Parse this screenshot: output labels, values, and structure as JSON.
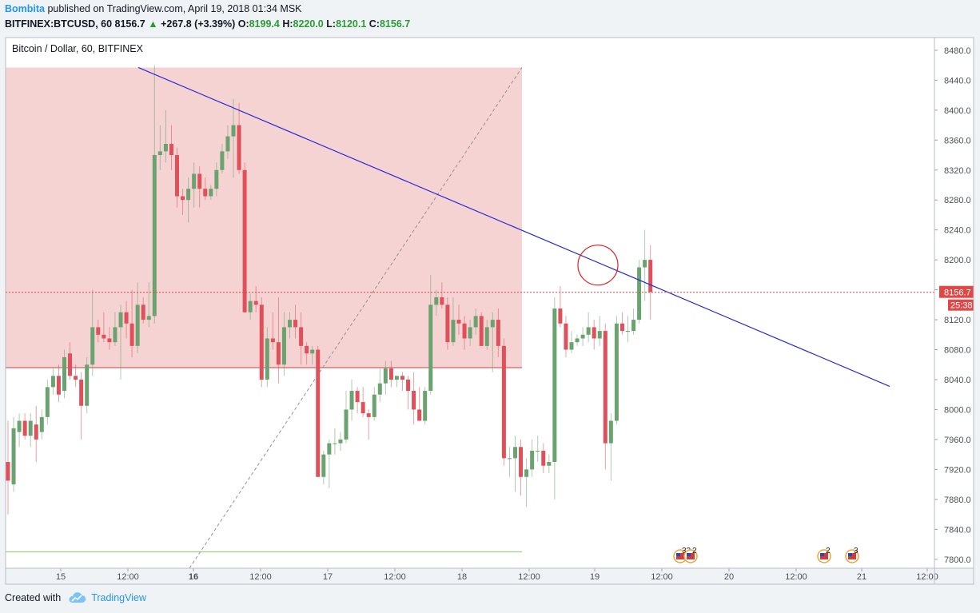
{
  "header": {
    "author": "Bombita",
    "published": " published on TradingView.com, April 19, 2018 01:34 MSK",
    "symbol": "BITFINEX:BTCUSD, 60",
    "last": "8156.7",
    "change": "+267.8 (+3.39%)",
    "o_label": "O:",
    "o": "8199.4",
    "h_label": "H:",
    "h": "8220.0",
    "l_label": "L:",
    "l": "8120.1",
    "c_label": "C:",
    "c": "8156.7"
  },
  "legend_title": "Bitcoin / Dollar, 60, BITFINEX",
  "footer": {
    "created_with": "Created with",
    "brand": "TradingView"
  },
  "price_label": "8156.7",
  "countdown_label": "25:38",
  "events": [
    {
      "label": "33",
      "near": "Apr 19 12:00"
    },
    {
      "label": "2",
      "near": "Apr 19 12:00"
    },
    {
      "label": "2",
      "near": "Apr 20 12:00"
    },
    {
      "label": "3",
      "near": "Apr 21"
    }
  ],
  "colors": {
    "up": "#6aa36f",
    "down": "#e0505a",
    "trendline": "#2a2ad8",
    "zone_red": "#f5d3d3",
    "zone_green": "#e9f6d4",
    "price_line": "#e04040"
  },
  "chart_data": {
    "type": "candlestick",
    "title": "Bitcoin / Dollar, 60, BITFINEX",
    "x_ticks": [
      "15",
      "12:00",
      "16",
      "12:00",
      "17",
      "12:00",
      "18",
      "12:00",
      "19",
      "12:00",
      "20",
      "12:00",
      "21",
      "12:00"
    ],
    "y_ticks": [
      8480,
      8440,
      8400,
      8360,
      8320,
      8280,
      8240,
      8200,
      8160,
      8120,
      8080,
      8040,
      8000,
      7960,
      7920,
      7880,
      7840,
      7800
    ],
    "ylim": [
      7788,
      8497
    ],
    "current_price": 8156.7,
    "zones": [
      {
        "type": "stop",
        "from": 8056,
        "to": 8457
      },
      {
        "type": "target",
        "from": 7787,
        "to": 8056
      }
    ],
    "target_line": 7810,
    "trendline": {
      "from_bar": 0,
      "from_price": 8457,
      "to_bar": 1,
      "to_price": 8031
    },
    "candles": [
      {
        "o": 7930,
        "h": 7985,
        "l": 7860,
        "c": 7905
      },
      {
        "o": 7900,
        "h": 7990,
        "l": 7890,
        "c": 7975
      },
      {
        "o": 7970,
        "h": 7995,
        "l": 7950,
        "c": 7985
      },
      {
        "o": 7985,
        "h": 7995,
        "l": 7960,
        "c": 7965
      },
      {
        "o": 7965,
        "h": 7995,
        "l": 7950,
        "c": 7985
      },
      {
        "o": 7980,
        "h": 8005,
        "l": 7930,
        "c": 7960
      },
      {
        "o": 7970,
        "h": 8000,
        "l": 7960,
        "c": 7990
      },
      {
        "o": 7990,
        "h": 8040,
        "l": 7980,
        "c": 8030
      },
      {
        "o": 8030,
        "h": 8055,
        "l": 8020,
        "c": 8045
      },
      {
        "o": 8045,
        "h": 8060,
        "l": 8010,
        "c": 8020
      },
      {
        "o": 8025,
        "h": 8080,
        "l": 8015,
        "c": 8070
      },
      {
        "o": 8075,
        "h": 8090,
        "l": 8040,
        "c": 8045
      },
      {
        "o": 8045,
        "h": 8060,
        "l": 8030,
        "c": 8040
      },
      {
        "o": 8040,
        "h": 8050,
        "l": 7960,
        "c": 8005
      },
      {
        "o": 8005,
        "h": 8070,
        "l": 7995,
        "c": 8060
      },
      {
        "o": 8060,
        "h": 8160,
        "l": 8045,
        "c": 8110
      },
      {
        "o": 8110,
        "h": 8120,
        "l": 8090,
        "c": 8100
      },
      {
        "o": 8100,
        "h": 8130,
        "l": 8090,
        "c": 8095
      },
      {
        "o": 8095,
        "h": 8110,
        "l": 8080,
        "c": 8090
      },
      {
        "o": 8090,
        "h": 8130,
        "l": 8085,
        "c": 8110
      },
      {
        "o": 8110,
        "h": 8140,
        "l": 8040,
        "c": 8130
      },
      {
        "o": 8130,
        "h": 8145,
        "l": 8095,
        "c": 8115
      },
      {
        "o": 8115,
        "h": 8160,
        "l": 8070,
        "c": 8085
      },
      {
        "o": 8085,
        "h": 8170,
        "l": 8075,
        "c": 8140
      },
      {
        "o": 8140,
        "h": 8150,
        "l": 8115,
        "c": 8120
      },
      {
        "o": 8120,
        "h": 8170,
        "l": 8110,
        "c": 8125
      },
      {
        "o": 8125,
        "h": 8460,
        "l": 8115,
        "c": 8340
      },
      {
        "o": 8340,
        "h": 8380,
        "l": 8320,
        "c": 8345
      },
      {
        "o": 8345,
        "h": 8400,
        "l": 8330,
        "c": 8355
      },
      {
        "o": 8355,
        "h": 8380,
        "l": 8320,
        "c": 8340
      },
      {
        "o": 8340,
        "h": 8350,
        "l": 8270,
        "c": 8285
      },
      {
        "o": 8285,
        "h": 8295,
        "l": 8260,
        "c": 8280
      },
      {
        "o": 8280,
        "h": 8310,
        "l": 8250,
        "c": 8295
      },
      {
        "o": 8295,
        "h": 8330,
        "l": 8270,
        "c": 8315
      },
      {
        "o": 8315,
        "h": 8325,
        "l": 8270,
        "c": 8295
      },
      {
        "o": 8295,
        "h": 8310,
        "l": 8280,
        "c": 8285
      },
      {
        "o": 8285,
        "h": 8300,
        "l": 8280,
        "c": 8295
      },
      {
        "o": 8295,
        "h": 8330,
        "l": 8285,
        "c": 8320
      },
      {
        "o": 8320,
        "h": 8355,
        "l": 8315,
        "c": 8345
      },
      {
        "o": 8345,
        "h": 8380,
        "l": 8335,
        "c": 8365
      },
      {
        "o": 8365,
        "h": 8415,
        "l": 8310,
        "c": 8380
      },
      {
        "o": 8380,
        "h": 8410,
        "l": 8315,
        "c": 8320
      },
      {
        "o": 8320,
        "h": 8330,
        "l": 8130,
        "c": 8130
      },
      {
        "o": 8130,
        "h": 8155,
        "l": 8120,
        "c": 8145
      },
      {
        "o": 8145,
        "h": 8165,
        "l": 8130,
        "c": 8140
      },
      {
        "o": 8140,
        "h": 8150,
        "l": 8030,
        "c": 8040
      },
      {
        "o": 8040,
        "h": 8110,
        "l": 8030,
        "c": 8095
      },
      {
        "o": 8095,
        "h": 8130,
        "l": 8080,
        "c": 8090
      },
      {
        "o": 8090,
        "h": 8150,
        "l": 8035,
        "c": 8060
      },
      {
        "o": 8060,
        "h": 8130,
        "l": 8045,
        "c": 8110
      },
      {
        "o": 8110,
        "h": 8130,
        "l": 8095,
        "c": 8120
      },
      {
        "o": 8120,
        "h": 8140,
        "l": 8095,
        "c": 8110
      },
      {
        "o": 8110,
        "h": 8130,
        "l": 8060,
        "c": 8085
      },
      {
        "o": 8085,
        "h": 8090,
        "l": 8060,
        "c": 8075
      },
      {
        "o": 8075,
        "h": 8085,
        "l": 8060,
        "c": 8080
      },
      {
        "o": 8080,
        "h": 8085,
        "l": 7910,
        "c": 7910
      },
      {
        "o": 7910,
        "h": 7945,
        "l": 7900,
        "c": 7940
      },
      {
        "o": 7940,
        "h": 7960,
        "l": 7895,
        "c": 7955
      },
      {
        "o": 7955,
        "h": 7975,
        "l": 7940,
        "c": 7955
      },
      {
        "o": 7955,
        "h": 7970,
        "l": 7945,
        "c": 7960
      },
      {
        "o": 7960,
        "h": 8025,
        "l": 7955,
        "c": 8000
      },
      {
        "o": 8000,
        "h": 8040,
        "l": 7985,
        "c": 8025
      },
      {
        "o": 8025,
        "h": 8030,
        "l": 7995,
        "c": 8010
      },
      {
        "o": 8010,
        "h": 8030,
        "l": 7990,
        "c": 7995
      },
      {
        "o": 7995,
        "h": 8000,
        "l": 7960,
        "c": 7990
      },
      {
        "o": 7990,
        "h": 8030,
        "l": 7985,
        "c": 8020
      },
      {
        "o": 8020,
        "h": 8055,
        "l": 8010,
        "c": 8035
      },
      {
        "o": 8035,
        "h": 8065,
        "l": 8020,
        "c": 8055
      },
      {
        "o": 8055,
        "h": 8065,
        "l": 8030,
        "c": 8040
      },
      {
        "o": 8040,
        "h": 8045,
        "l": 8030,
        "c": 8045
      },
      {
        "o": 8045,
        "h": 8050,
        "l": 8025,
        "c": 8040
      },
      {
        "o": 8040,
        "h": 8045,
        "l": 8000,
        "c": 8025
      },
      {
        "o": 8025,
        "h": 8050,
        "l": 7980,
        "c": 8000
      },
      {
        "o": 8000,
        "h": 8030,
        "l": 7985,
        "c": 7985
      },
      {
        "o": 7985,
        "h": 8030,
        "l": 7980,
        "c": 8025
      },
      {
        "o": 8025,
        "h": 8180,
        "l": 8020,
        "c": 8140
      },
      {
        "o": 8140,
        "h": 8160,
        "l": 8125,
        "c": 8150
      },
      {
        "o": 8150,
        "h": 8170,
        "l": 8135,
        "c": 8140
      },
      {
        "o": 8140,
        "h": 8150,
        "l": 8080,
        "c": 8090
      },
      {
        "o": 8090,
        "h": 8150,
        "l": 8085,
        "c": 8120
      },
      {
        "o": 8120,
        "h": 8140,
        "l": 8100,
        "c": 8115
      },
      {
        "o": 8115,
        "h": 8125,
        "l": 8080,
        "c": 8095
      },
      {
        "o": 8095,
        "h": 8120,
        "l": 8085,
        "c": 8110
      },
      {
        "o": 8110,
        "h": 8135,
        "l": 8100,
        "c": 8125
      },
      {
        "o": 8125,
        "h": 8130,
        "l": 8085,
        "c": 8085
      },
      {
        "o": 8085,
        "h": 8120,
        "l": 8080,
        "c": 8110
      },
      {
        "o": 8110,
        "h": 8130,
        "l": 8050,
        "c": 8120
      },
      {
        "o": 8120,
        "h": 8135,
        "l": 8070,
        "c": 8085
      },
      {
        "o": 8085,
        "h": 8095,
        "l": 7925,
        "c": 7935
      },
      {
        "o": 7935,
        "h": 7950,
        "l": 7910,
        "c": 7935
      },
      {
        "o": 7935,
        "h": 7965,
        "l": 7890,
        "c": 7950
      },
      {
        "o": 7950,
        "h": 7960,
        "l": 7885,
        "c": 7910
      },
      {
        "o": 7910,
        "h": 7935,
        "l": 7870,
        "c": 7920
      },
      {
        "o": 7920,
        "h": 7960,
        "l": 7910,
        "c": 7945
      },
      {
        "o": 7945,
        "h": 7965,
        "l": 7930,
        "c": 7945
      },
      {
        "o": 7945,
        "h": 7955,
        "l": 7915,
        "c": 7925
      },
      {
        "o": 7925,
        "h": 7940,
        "l": 7915,
        "c": 7930
      },
      {
        "o": 7930,
        "h": 8150,
        "l": 7880,
        "c": 8135
      },
      {
        "o": 8135,
        "h": 8165,
        "l": 8110,
        "c": 8115
      },
      {
        "o": 8115,
        "h": 8125,
        "l": 8070,
        "c": 8080
      },
      {
        "o": 8080,
        "h": 8105,
        "l": 8075,
        "c": 8090
      },
      {
        "o": 8090,
        "h": 8100,
        "l": 8085,
        "c": 8095
      },
      {
        "o": 8095,
        "h": 8110,
        "l": 8085,
        "c": 8100
      },
      {
        "o": 8100,
        "h": 8130,
        "l": 8090,
        "c": 8110
      },
      {
        "o": 8110,
        "h": 8120,
        "l": 8080,
        "c": 8095
      },
      {
        "o": 8095,
        "h": 8125,
        "l": 8085,
        "c": 8105
      },
      {
        "o": 8105,
        "h": 8115,
        "l": 7920,
        "c": 7955
      },
      {
        "o": 7955,
        "h": 7995,
        "l": 7905,
        "c": 7985
      },
      {
        "o": 7985,
        "h": 8125,
        "l": 7980,
        "c": 8115
      },
      {
        "o": 8115,
        "h": 8130,
        "l": 8100,
        "c": 8105
      },
      {
        "o": 8105,
        "h": 8125,
        "l": 8090,
        "c": 8105
      },
      {
        "o": 8105,
        "h": 8135,
        "l": 8100,
        "c": 8120
      },
      {
        "o": 8120,
        "h": 8200,
        "l": 8115,
        "c": 8190
      },
      {
        "o": 8190,
        "h": 8240,
        "l": 8145,
        "c": 8200
      },
      {
        "o": 8200,
        "h": 8220,
        "l": 8120,
        "c": 8157
      }
    ]
  }
}
